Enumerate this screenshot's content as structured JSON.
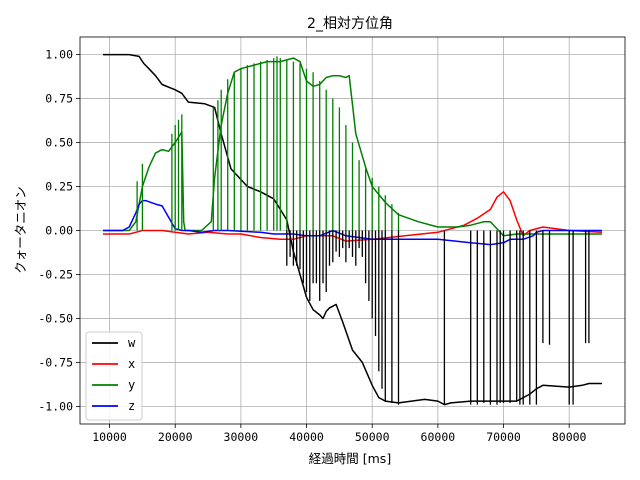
{
  "chart_data": {
    "type": "line",
    "title": "2_相対方位角",
    "xlabel": "経過時間 [ms]",
    "ylabel": "クォータニオン",
    "xlim": [
      5500,
      88500
    ],
    "ylim": [
      -1.1,
      1.1
    ],
    "xticks": [
      10000,
      20000,
      30000,
      40000,
      50000,
      60000,
      70000,
      80000
    ],
    "xtick_labels": [
      "10000",
      "20000",
      "30000",
      "40000",
      "50000",
      "60000",
      "70000",
      "80000"
    ],
    "yticks": [
      1.0,
      0.75,
      0.5,
      0.25,
      0.0,
      -0.25,
      -0.5,
      -0.75,
      -1.0
    ],
    "ytick_labels": [
      "1.00",
      "0.75",
      "0.50",
      "0.25",
      "0.00",
      "-0.25",
      "-0.50",
      "-0.75",
      "-1.00"
    ],
    "grid": true,
    "legend_position": "lower-left",
    "series": [
      {
        "name": "w",
        "color": "#000000",
        "x": [
          9000,
          13000,
          14500,
          15200,
          16000,
          17000,
          18000,
          20000,
          21000,
          22000,
          24500,
          26000,
          27000,
          28500,
          31000,
          33000,
          35000,
          37000,
          38000,
          39000,
          40000,
          41000,
          42000,
          42500,
          43000,
          43500,
          44500,
          45500,
          47000,
          48500,
          50000,
          51000,
          52000,
          54000,
          56000,
          58000,
          60000,
          61000,
          62000,
          65000,
          68000,
          70000,
          72000,
          74000,
          75000,
          76000,
          80000,
          82000,
          83000,
          85000
        ],
        "y": [
          1.0,
          1.0,
          0.99,
          0.95,
          0.92,
          0.88,
          0.83,
          0.8,
          0.78,
          0.73,
          0.72,
          0.7,
          0.55,
          0.35,
          0.25,
          0.22,
          0.18,
          0.06,
          -0.12,
          -0.25,
          -0.38,
          -0.45,
          -0.48,
          -0.5,
          -0.46,
          -0.44,
          -0.42,
          -0.52,
          -0.68,
          -0.75,
          -0.88,
          -0.95,
          -0.97,
          -0.98,
          -0.97,
          -0.96,
          -0.97,
          -0.99,
          -0.98,
          -0.97,
          -0.97,
          -0.97,
          -0.97,
          -0.93,
          -0.9,
          -0.88,
          -0.89,
          -0.88,
          -0.87,
          -0.87
        ]
      },
      {
        "name": "x",
        "color": "#ff0000",
        "x": [
          9000,
          13000,
          14000,
          15000,
          18000,
          20000,
          22000,
          25000,
          28000,
          30000,
          33000,
          36000,
          38000,
          40000,
          42000,
          44000,
          46000,
          50000,
          55000,
          60000,
          64000,
          66000,
          68000,
          69000,
          70000,
          71000,
          72000,
          73000,
          74000,
          76000,
          80000,
          85000
        ],
        "y": [
          -0.02,
          -0.02,
          -0.01,
          0.0,
          0.0,
          -0.01,
          -0.02,
          -0.01,
          -0.02,
          -0.02,
          -0.04,
          -0.05,
          -0.05,
          -0.03,
          -0.03,
          -0.03,
          -0.06,
          -0.05,
          -0.03,
          -0.01,
          0.03,
          0.07,
          0.12,
          0.19,
          0.22,
          0.17,
          0.06,
          -0.03,
          0.0,
          0.02,
          0.0,
          -0.01
        ]
      },
      {
        "name": "y",
        "color": "#008000",
        "x": [
          9000,
          13000,
          14000,
          14500,
          15000,
          16000,
          17000,
          18000,
          19000,
          20000,
          21000,
          21300,
          21500,
          24000,
          25500,
          26000,
          27000,
          28000,
          29000,
          30000,
          32000,
          34000,
          36000,
          37000,
          38000,
          39000,
          40000,
          41000,
          42000,
          43000,
          44000,
          45000,
          46000,
          46500,
          47500,
          49000,
          50000,
          52000,
          54000,
          57000,
          60000,
          63000,
          65000,
          67000,
          68000,
          70000,
          72000,
          74000,
          76000,
          80000,
          85000
        ],
        "y": [
          0.0,
          0.0,
          0.05,
          0.15,
          0.25,
          0.36,
          0.44,
          0.46,
          0.45,
          0.5,
          0.56,
          0.05,
          0.0,
          0.0,
          0.05,
          0.3,
          0.6,
          0.78,
          0.9,
          0.92,
          0.94,
          0.96,
          0.96,
          0.97,
          0.98,
          0.96,
          0.85,
          0.82,
          0.83,
          0.87,
          0.88,
          0.88,
          0.87,
          0.88,
          0.55,
          0.36,
          0.25,
          0.16,
          0.09,
          0.05,
          0.02,
          0.02,
          0.03,
          0.05,
          0.05,
          -0.03,
          -0.02,
          -0.02,
          -0.02,
          -0.02,
          -0.02
        ]
      },
      {
        "name": "z",
        "color": "#0000ff",
        "x": [
          9000,
          12000,
          13000,
          13500,
          14000,
          14500,
          15000,
          15500,
          17000,
          18000,
          20000,
          21000,
          21500,
          22000,
          24000,
          26000,
          28000,
          33000,
          35000,
          38000,
          40000,
          42000,
          44000,
          46000,
          48000,
          50000,
          55000,
          60000,
          65000,
          68000,
          70000,
          71000,
          73000,
          74500,
          75000,
          76000,
          77000,
          78000,
          79000,
          80000,
          81000,
          83000,
          85000
        ],
        "y": [
          0.0,
          0.0,
          0.02,
          0.06,
          0.1,
          0.15,
          0.17,
          0.17,
          0.15,
          0.14,
          0.01,
          0.0,
          0.0,
          0.0,
          -0.01,
          0.0,
          0.0,
          -0.01,
          -0.02,
          -0.02,
          -0.03,
          -0.03,
          0.0,
          -0.03,
          -0.04,
          -0.05,
          -0.05,
          -0.05,
          -0.07,
          -0.08,
          -0.07,
          -0.05,
          -0.05,
          -0.03,
          -0.01,
          0.0,
          0.0,
          0.0,
          0.0,
          0.0,
          0.0,
          0.0,
          0.0
        ]
      }
    ],
    "spikes": [
      {
        "series": "w",
        "x": [
          37000,
          37500,
          38000,
          38500,
          39000,
          39500,
          40000,
          40500,
          41000,
          41500,
          42000,
          42500,
          43000,
          43500,
          44000,
          44500,
          45000,
          45500,
          46000,
          46500,
          47000,
          47500,
          48000,
          48500,
          49000,
          49500,
          50000,
          50500,
          51000,
          51500,
          52000,
          53000,
          54000,
          61000,
          65000,
          66000,
          67000,
          68000,
          69000,
          69500,
          70000,
          71000,
          72000,
          72500,
          73000,
          74000,
          75000,
          76000,
          77000,
          80000,
          80600,
          82500,
          83000
        ],
        "y": [
          -0.2,
          -0.15,
          -0.2,
          -0.2,
          -0.22,
          -0.3,
          -0.35,
          -0.4,
          -0.3,
          -0.3,
          -0.4,
          -0.3,
          -0.35,
          -0.2,
          -0.18,
          -0.12,
          -0.15,
          -0.1,
          -0.18,
          -0.1,
          -0.15,
          -0.2,
          -0.1,
          -0.15,
          -0.3,
          -0.4,
          -0.5,
          -0.6,
          -0.8,
          -0.9,
          -0.97,
          -0.98,
          -0.99,
          -0.99,
          -0.99,
          -0.99,
          -0.98,
          -0.99,
          -0.99,
          -0.98,
          -0.98,
          -0.98,
          -0.97,
          -0.99,
          -0.99,
          -0.99,
          -0.99,
          -0.64,
          -0.65,
          -0.99,
          -0.99,
          -0.64,
          -0.64
        ]
      },
      {
        "series": "y",
        "x": [
          14200,
          15000,
          19500,
          20000,
          20500,
          21000,
          25800,
          26500,
          27000,
          28000,
          29000,
          30000,
          31000,
          32000,
          33000,
          34000,
          35000,
          35500,
          36000,
          37000,
          38000,
          39000,
          40000,
          41000,
          42000,
          43000,
          44000,
          45000,
          46000,
          47000,
          48000,
          49000,
          50000,
          51000,
          52000,
          53000,
          54000
        ],
        "y": [
          0.28,
          0.38,
          0.55,
          0.6,
          0.63,
          0.66,
          0.7,
          0.74,
          0.8,
          0.86,
          0.9,
          0.92,
          0.94,
          0.95,
          0.96,
          0.97,
          0.98,
          0.99,
          0.98,
          0.97,
          0.96,
          0.95,
          0.92,
          0.9,
          0.85,
          0.8,
          0.75,
          0.7,
          0.6,
          0.5,
          0.4,
          0.35,
          0.3,
          0.25,
          0.2,
          0.15,
          0.1
        ]
      }
    ]
  }
}
